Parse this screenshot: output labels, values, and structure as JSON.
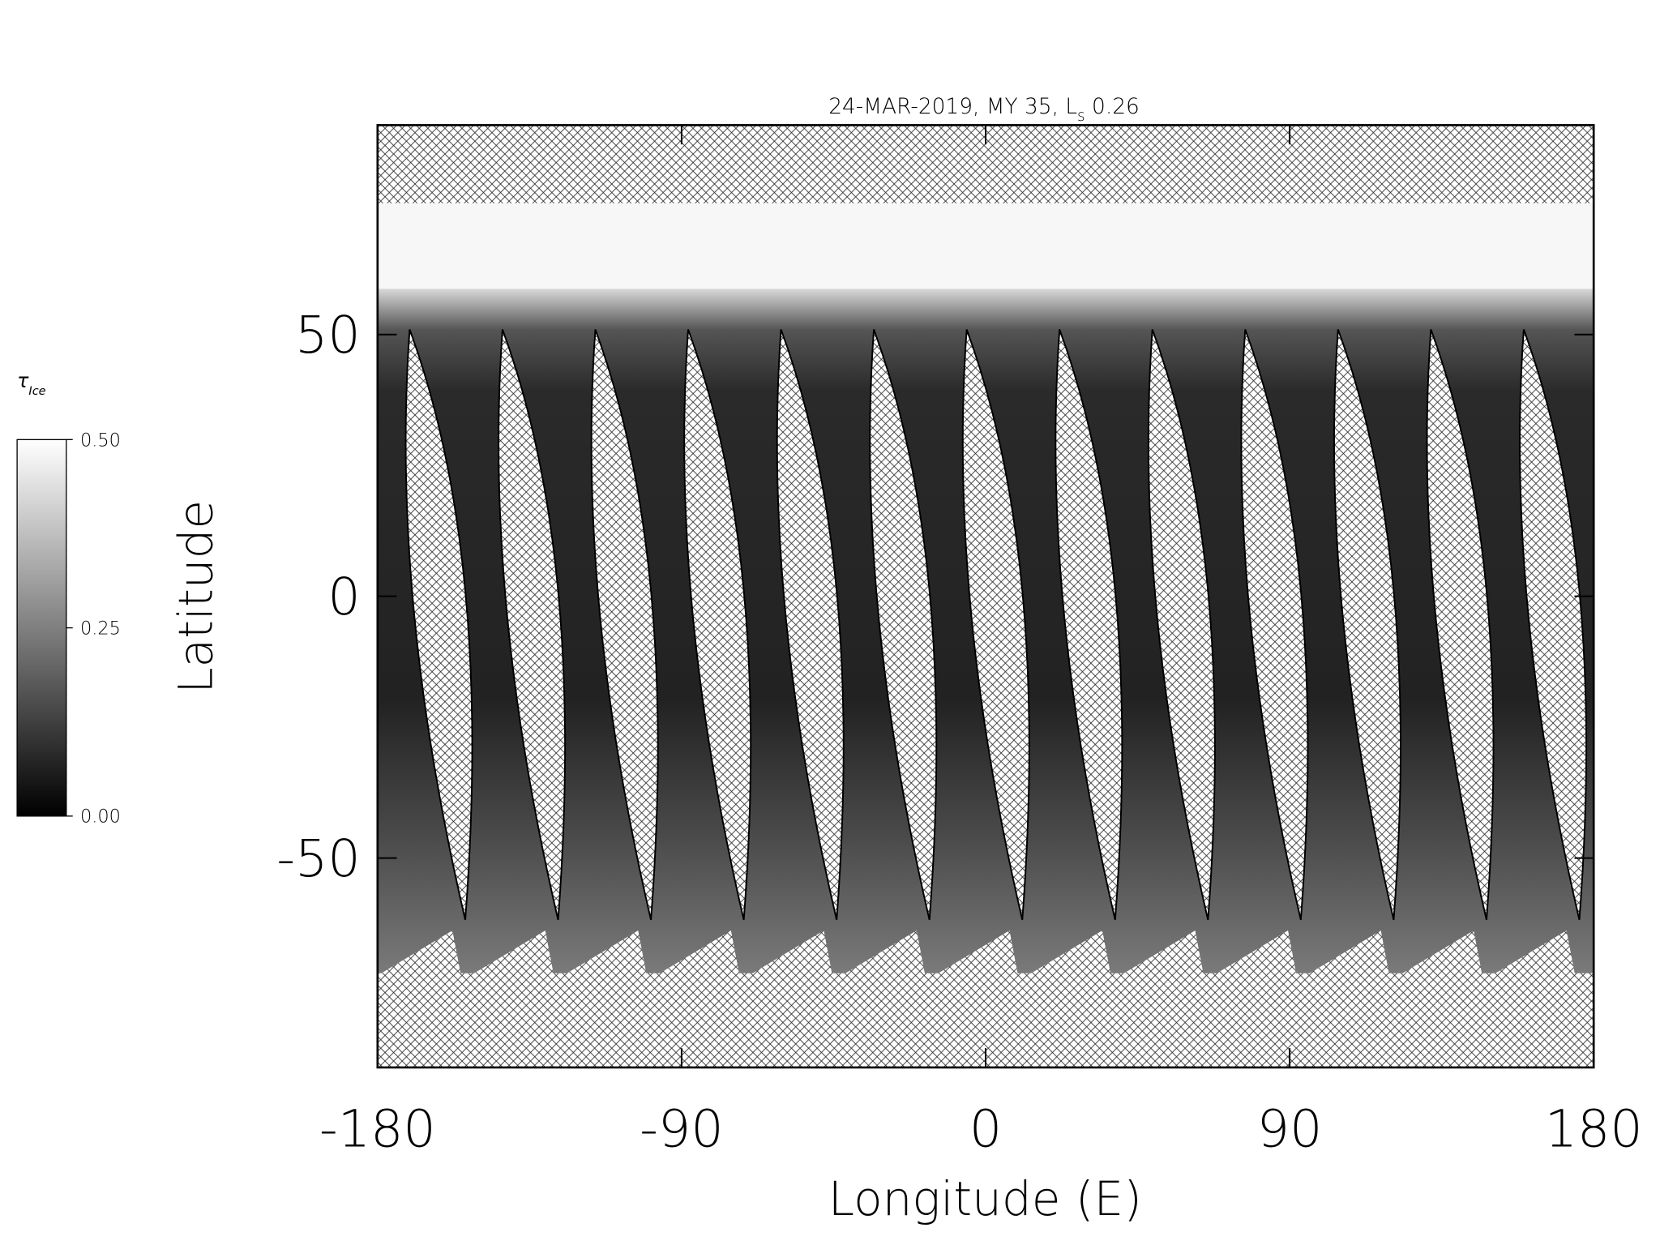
{
  "chart_data": {
    "type": "map",
    "title": "24-MAR-2019, MY 35,  L",
    "title_subscript": "s",
    "title_suffix": "0.26",
    "xlabel": "Longitude (E)",
    "ylabel": "Latitude",
    "xlim": [
      -180,
      180
    ],
    "xticks": [
      -180,
      -90,
      0,
      90,
      180
    ],
    "ylim": [
      -90,
      90
    ],
    "yticks": [
      -50,
      0,
      50
    ],
    "colorbar": {
      "label": "τ",
      "label_subscript": "Ice",
      "lim": [
        0,
        0.5
      ],
      "ticks": [
        {
          "value": 0,
          "label": "0.00"
        },
        {
          "value": 0.25,
          "label": "0.25"
        },
        {
          "value": 0.5,
          "label": "0.50"
        }
      ]
    }
  }
}
